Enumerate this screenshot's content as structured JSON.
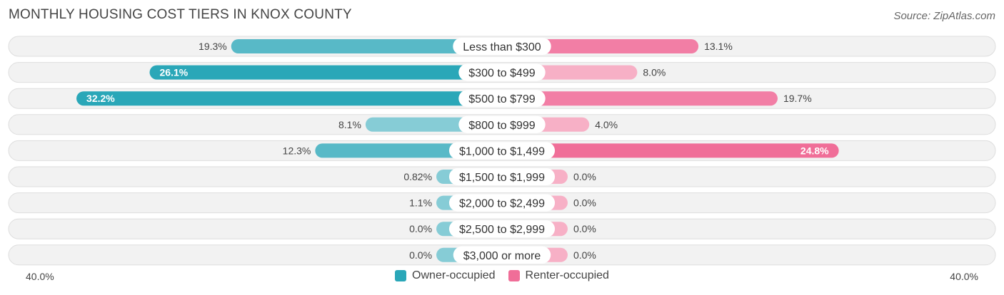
{
  "title": "MONTHLY HOUSING COST TIERS IN KNOX COUNTY",
  "source": "Source: ZipAtlas.com",
  "colors": {
    "owner": "#2aa7b8",
    "owner_light": "#86ccd6",
    "renter": "#f06e98",
    "renter_light": "#f7b0c6",
    "row_bg": "#f0f0f0"
  },
  "chart_data": {
    "type": "bar",
    "orientation": "horizontal-diverging",
    "categories": [
      "Less than $300",
      "$300 to $499",
      "$500 to $799",
      "$800 to $999",
      "$1,000 to $1,499",
      "$1,500 to $1,999",
      "$2,000 to $2,499",
      "$2,500 to $2,999",
      "$3,000 or more"
    ],
    "series": [
      {
        "name": "Owner-occupied",
        "values": [
          19.3,
          26.1,
          32.2,
          8.1,
          12.3,
          0.82,
          1.1,
          0.0,
          0.0
        ],
        "labels": [
          "19.3%",
          "26.1%",
          "32.2%",
          "8.1%",
          "12.3%",
          "0.82%",
          "1.1%",
          "0.0%",
          "0.0%"
        ]
      },
      {
        "name": "Renter-occupied",
        "values": [
          13.1,
          8.0,
          19.7,
          4.0,
          24.8,
          0.0,
          0.0,
          0.0,
          0.0
        ],
        "labels": [
          "13.1%",
          "8.0%",
          "19.7%",
          "4.0%",
          "24.8%",
          "0.0%",
          "0.0%",
          "0.0%",
          "0.0%"
        ]
      }
    ],
    "xlim": [
      -40,
      40
    ],
    "axis_min_label": "40.0%",
    "axis_max_label": "40.0%",
    "legend_position": "bottom-center"
  }
}
